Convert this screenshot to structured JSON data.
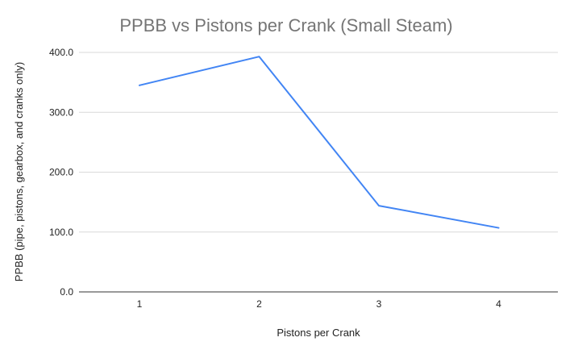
{
  "chart_data": {
    "type": "line",
    "title": "PPBB vs Pistons per Crank (Small Steam)",
    "xlabel": "Pistons per Crank",
    "ylabel": "PPBB (pipe, pistons, gearbox, and cranks only)",
    "categories": [
      "1",
      "2",
      "3",
      "4"
    ],
    "series": [
      {
        "values": [
          345,
          393,
          144,
          107
        ],
        "color": "#4285f4"
      }
    ],
    "ylim": [
      0,
      400
    ],
    "yticks": [
      "0.0",
      "100.0",
      "200.0",
      "300.0",
      "400.0"
    ],
    "grid": true,
    "legend": "none"
  }
}
